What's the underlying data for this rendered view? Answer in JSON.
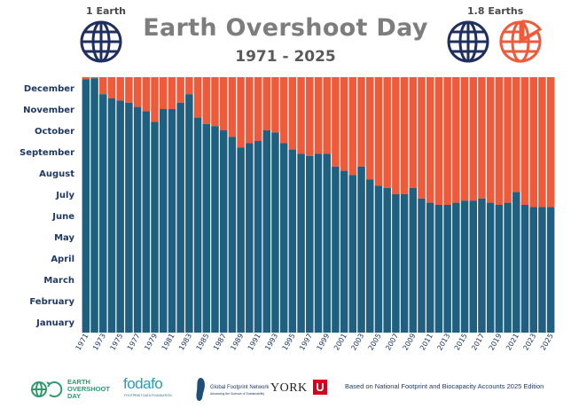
{
  "header": {
    "title": "Earth Overshoot Day",
    "subtitle": "1971 - 2025",
    "left_globe_label": "1 Earth",
    "right_globe_label": "1.8 Earths"
  },
  "colors": {
    "biocapacity": "#1f5f7f",
    "overshoot": "#ef5a3a",
    "globe_dark": "#1f2f5f",
    "globe_red": "#ef5a3a"
  },
  "chart_data": {
    "type": "bar",
    "title": "Earth Overshoot Day",
    "subtitle": "1971 - 2025",
    "xlabel": "",
    "ylabel": "",
    "x_tick_labels": [
      "1971",
      "1973",
      "1975",
      "1977",
      "1979",
      "1981",
      "1983",
      "1985",
      "1987",
      "1989",
      "1991",
      "1993",
      "1995",
      "1997",
      "1999",
      "2001",
      "2003",
      "2005",
      "2007",
      "2009",
      "2011",
      "2013",
      "2015",
      "2017",
      "2019",
      "2021",
      "2023",
      "2025"
    ],
    "y_tick_labels": [
      "January",
      "February",
      "March",
      "April",
      "May",
      "June",
      "July",
      "August",
      "September",
      "October",
      "November",
      "December"
    ],
    "ylim": [
      0,
      12
    ],
    "years": [
      1971,
      1972,
      1973,
      1974,
      1975,
      1976,
      1977,
      1978,
      1979,
      1980,
      1981,
      1982,
      1983,
      1984,
      1985,
      1986,
      1987,
      1988,
      1989,
      1990,
      1991,
      1992,
      1993,
      1994,
      1995,
      1996,
      1997,
      1998,
      1999,
      2000,
      2001,
      2002,
      2003,
      2004,
      2005,
      2006,
      2007,
      2008,
      2009,
      2010,
      2011,
      2012,
      2013,
      2014,
      2015,
      2016,
      2017,
      2018,
      2019,
      2020,
      2021,
      2022,
      2023,
      2024,
      2025
    ],
    "series": [
      {
        "name": "",
        "values": [
          11.9,
          11.95,
          11.2,
          11.0,
          10.9,
          10.8,
          10.6,
          10.4,
          9.9,
          10.5,
          10.5,
          10.8,
          11.2,
          10.1,
          9.8,
          9.7,
          9.5,
          9.2,
          8.7,
          8.9,
          9.0,
          9.5,
          9.4,
          8.9,
          8.6,
          8.4,
          8.3,
          8.4,
          8.4,
          7.8,
          7.6,
          7.4,
          7.8,
          7.2,
          6.9,
          6.8,
          6.5,
          6.5,
          6.8,
          6.3,
          6.1,
          6.0,
          6.0,
          6.1,
          6.2,
          6.2,
          6.3,
          6.1,
          6.0,
          6.1,
          6.6,
          6.0,
          5.9,
          5.9,
          5.9
        ]
      }
    ]
  },
  "footer": {
    "eod_logo_line1": "EARTH",
    "eod_logo_line2": "OVERSHOOT",
    "eod_logo_line3": "DAY",
    "fodafo_logo": "fodafo",
    "fodafo_sub": "FOOTPRINT DATA FOUNDATION",
    "gfn_logo_line1": "Global Footprint Network",
    "gfn_logo_line2": "Advancing the Science of Sustainability",
    "york_logo": "YORK",
    "york_mark": "U",
    "attribution": "Based on National Footprint and Biocapacity Accounts 2025 Edition"
  }
}
